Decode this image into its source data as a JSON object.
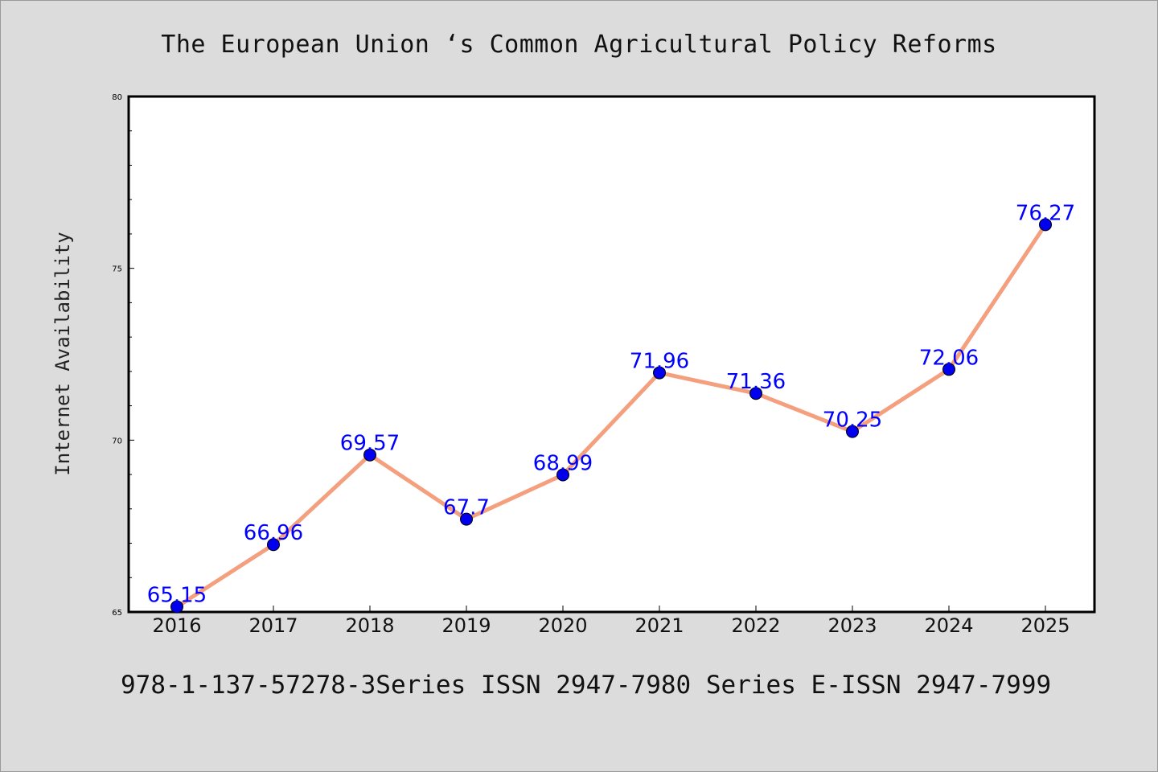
{
  "title": "The European Union ‘s Common Agricultural Policy Reforms",
  "footer": "978-1-137-57278-3Series ISSN 2947-7980 Series E-ISSN 2947-7999",
  "colors": {
    "background": "#dcdcdc",
    "plot_area": "#ffffff",
    "line": "#f4a07e",
    "marker": "#0000ee",
    "data_label": "#0000ff"
  },
  "chart_data": {
    "type": "line",
    "title": "The European Union ‘s Common Agricultural Policy Reforms",
    "xlabel": "",
    "ylabel": "Internet Availability",
    "x": [
      "2016",
      "2017",
      "2018",
      "2019",
      "2020",
      "2021",
      "2022",
      "2023",
      "2024",
      "2025"
    ],
    "series": [
      {
        "values": [
          65.15,
          66.96,
          69.57,
          67.7,
          68.99,
          71.96,
          71.36,
          70.25,
          72.06,
          76.27
        ]
      }
    ],
    "data_labels": [
      "65.15",
      "66.96",
      "69.57",
      "67.7",
      "68.99",
      "71.96",
      "71.36",
      "70.25",
      "72.06",
      "76.27"
    ],
    "ylim": [
      65,
      80
    ],
    "yticks": [
      "65",
      "70",
      "75",
      "80"
    ],
    "grid": false,
    "legend": "none"
  }
}
